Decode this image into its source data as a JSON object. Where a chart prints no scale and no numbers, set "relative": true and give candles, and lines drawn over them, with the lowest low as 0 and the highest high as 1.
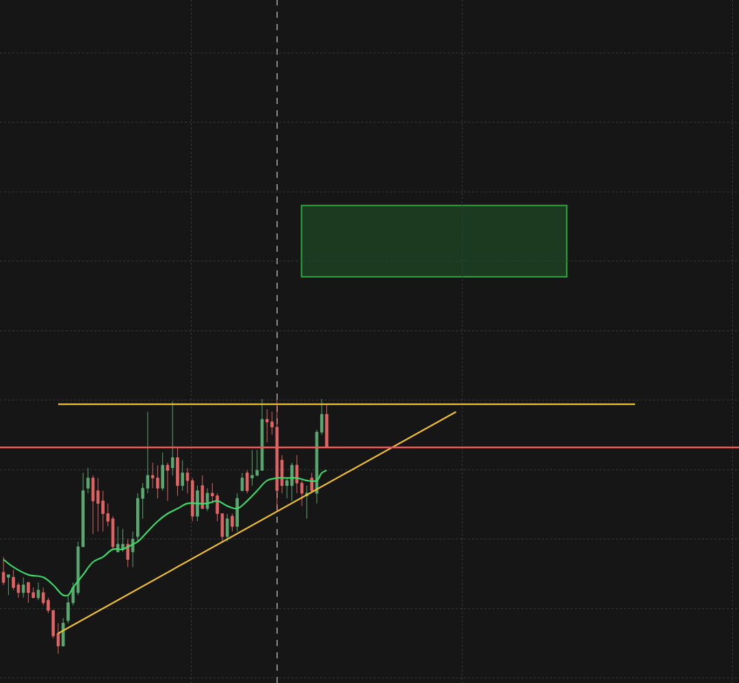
{
  "chart_data": {
    "type": "candlestick",
    "relative": true,
    "categories": [
      null,
      null,
      null,
      null,
      null,
      null,
      null,
      null,
      null,
      null,
      null,
      null,
      null,
      null,
      null,
      null,
      null,
      null,
      null,
      null,
      null,
      null,
      null,
      null,
      null,
      null,
      null,
      null,
      null,
      null,
      null,
      null,
      null,
      null,
      null,
      null,
      null,
      null,
      null,
      null,
      null,
      null,
      null,
      null,
      null,
      null,
      null,
      null,
      null,
      null,
      null,
      null,
      null,
      null,
      null,
      null,
      null,
      null,
      null,
      null,
      null,
      null,
      null,
      null,
      null,
      null,
      null,
      null,
      null,
      null,
      null,
      null,
      null,
      null,
      null,
      null,
      null,
      null,
      null,
      null,
      null,
      null,
      null,
      null,
      null,
      null,
      null,
      null,
      null,
      null,
      null,
      null,
      null,
      null,
      null,
      null,
      null,
      null,
      null,
      null,
      null,
      null,
      null,
      null,
      null,
      null,
      null,
      null,
      null,
      null,
      null,
      null,
      null,
      null,
      null,
      null,
      null,
      null,
      null,
      null,
      null,
      null,
      null,
      null,
      null,
      null,
      null,
      null
    ],
    "ohlc": [
      [
        0.32,
        0.38,
        0.27,
        0.28
      ],
      [
        0.3,
        0.31,
        0.23,
        0.31
      ],
      [
        0.3,
        0.33,
        0.25,
        0.26
      ],
      [
        0.27,
        0.28,
        0.22,
        0.24
      ],
      [
        0.24,
        0.3,
        0.22,
        0.27
      ],
      [
        0.28,
        0.28,
        0.2,
        0.24
      ],
      [
        0.24,
        0.26,
        0.22,
        0.22
      ],
      [
        0.22,
        0.28,
        0.21,
        0.25
      ],
      [
        0.24,
        0.26,
        0.19,
        0.2
      ],
      [
        0.21,
        0.22,
        0.16,
        0.17
      ],
      [
        0.17,
        0.17,
        0.06,
        0.07
      ],
      [
        0.08,
        0.12,
        0,
        0.03
      ],
      [
        0.03,
        0.14,
        0.03,
        0.12
      ],
      [
        0.13,
        0.23,
        0.12,
        0.2
      ],
      [
        0.2,
        0.28,
        0.19,
        0.26
      ],
      [
        0.24,
        0.44,
        0.23,
        0.42
      ],
      [
        0.42,
        0.71,
        0.42,
        0.64
      ],
      [
        0.65,
        0.73,
        0.63,
        0.69
      ],
      [
        0.69,
        0.7,
        0.47,
        0.6
      ],
      [
        0.64,
        0.69,
        0.48,
        0.59
      ],
      [
        0.6,
        0.64,
        0.48,
        0.55
      ],
      [
        0.55,
        0.59,
        0.5,
        0.52
      ],
      [
        0.53,
        0.54,
        0.41,
        0.42
      ],
      [
        0.4,
        0.5,
        0.4,
        0.43
      ],
      [
        0.41,
        0.49,
        0.4,
        0.43
      ],
      [
        0.43,
        0.45,
        0.34,
        0.37
      ],
      [
        0.4,
        0.48,
        0.34,
        0.45
      ],
      [
        0.46,
        0.63,
        0.44,
        0.61
      ],
      [
        0.61,
        0.67,
        0.53,
        0.65
      ],
      [
        0.65,
        0.95,
        0.63,
        0.7
      ],
      [
        0.7,
        0.75,
        0.65,
        0.69
      ],
      [
        0.69,
        0.74,
        0.61,
        0.65
      ],
      [
        0.65,
        0.79,
        0.64,
        0.74
      ],
      [
        0.74,
        0.75,
        0.6,
        0.72
      ],
      [
        0.73,
        0.99,
        0.7,
        0.77
      ],
      [
        0.77,
        0.81,
        0.62,
        0.66
      ],
      [
        0.66,
        0.76,
        0.64,
        0.71
      ],
      [
        0.71,
        0.73,
        0.63,
        0.68
      ],
      [
        0.68,
        0.69,
        0.52,
        0.54
      ],
      [
        0.54,
        0.66,
        0.52,
        0.64
      ],
      [
        0.66,
        0.7,
        0.57,
        0.57
      ],
      [
        0.57,
        0.65,
        0.56,
        0.63
      ],
      [
        0.63,
        0.67,
        0.59,
        0.62
      ],
      [
        0.62,
        0.63,
        0.52,
        0.55
      ],
      [
        0.55,
        0.55,
        0.44,
        0.46
      ],
      [
        0.46,
        0.55,
        0.44,
        0.53
      ],
      [
        0.54,
        0.55,
        0.48,
        0.5
      ],
      [
        0.5,
        0.63,
        0.48,
        0.61
      ],
      [
        0.64,
        0.71,
        0.64,
        0.69
      ],
      [
        0.71,
        0.72,
        0.63,
        0.64
      ],
      [
        0.69,
        0.8,
        0.66,
        0.7
      ],
      [
        0.7,
        0.8,
        0.7,
        0.72
      ],
      [
        0.72,
        1.0,
        0.72,
        0.92
      ],
      [
        0.92,
        0.96,
        0.83,
        0.91
      ],
      [
        0.91,
        0.95,
        0.86,
        0.89
      ],
      [
        0.89,
        1.0,
        0.56,
        0.64
      ],
      [
        0.76,
        0.78,
        0.63,
        0.66
      ],
      [
        0.66,
        0.69,
        0.61,
        0.68
      ],
      [
        0.66,
        0.75,
        0.6,
        0.74
      ],
      [
        0.74,
        0.78,
        0.63,
        0.67
      ],
      [
        0.67,
        0.68,
        0.58,
        0.63
      ],
      [
        0.62,
        0.66,
        0.53,
        0.63
      ],
      [
        0.69,
        0.71,
        0.63,
        0.64
      ],
      [
        0.63,
        0.88,
        0.59,
        0.87
      ],
      [
        0.87,
        1.0,
        0.86,
        0.94
      ],
      [
        0.94,
        0.98,
        0.81,
        0.81
      ],
      null,
      null,
      null,
      null,
      null,
      null,
      null,
      null,
      null,
      null,
      null,
      null,
      null,
      null,
      null,
      null,
      null,
      null,
      null,
      null,
      null,
      null,
      null,
      null,
      null,
      null,
      null,
      null,
      null,
      null,
      null,
      null,
      null,
      null,
      null,
      null,
      null,
      null,
      null,
      null,
      null,
      null,
      null,
      null,
      null,
      null,
      null,
      null,
      null,
      null,
      null,
      null,
      null,
      null,
      null,
      null,
      null,
      null,
      null,
      null,
      null,
      null
    ],
    "colors": [
      "#e06464",
      "#5aa870",
      "#e06464",
      "#e06464",
      "#5aa870",
      "#e06464",
      "#e06464",
      "#5aa870",
      "#e06464",
      "#e06464",
      "#e06464",
      "#e06464",
      "#5aa870",
      "#5aa870",
      "#5aa870",
      "#5aa870",
      "#5aa870",
      "#5aa870",
      "#e06464",
      "#e06464",
      "#e06464",
      "#e06464",
      "#e06464",
      "#5aa870",
      "#5aa870",
      "#e06464",
      "#5aa870",
      "#5aa870",
      "#5aa870",
      "#5aa870",
      "#e06464",
      "#e06464",
      "#5aa870",
      "#e06464",
      "#5aa870",
      "#e06464",
      "#5aa870",
      "#e06464",
      "#e06464",
      "#5aa870",
      "#e06464",
      "#5aa870",
      "#e06464",
      "#e06464",
      "#e06464",
      "#5aa870",
      "#e06464",
      "#5aa870",
      "#5aa870",
      "#e06464",
      "#5aa870",
      "#5aa870",
      "#5aa870",
      "#e06464",
      "#e06464",
      "#e06464",
      "#e06464",
      "#5aa870",
      "#5aa870",
      "#e06464",
      "#e06464",
      "#5aa870",
      "#e06464",
      "#5aa870",
      "#5aa870",
      "#e06464",
      null,
      null,
      null,
      null,
      null,
      null,
      null,
      null,
      null,
      null,
      null,
      null,
      null,
      null,
      null,
      null,
      null,
      null,
      null,
      null,
      null,
      null,
      null,
      null,
      null,
      null,
      null,
      null,
      null,
      null,
      null,
      null,
      null,
      null,
      null,
      null,
      null,
      null,
      null,
      null,
      null,
      null,
      null,
      null,
      null,
      null,
      null,
      null,
      null,
      null,
      null,
      null,
      null,
      null,
      null,
      null,
      null,
      null,
      null,
      null,
      null,
      null
    ],
    "series": [
      {
        "type": "line",
        "color": "#3ddc6a",
        "values": [
          0.37,
          null,
          0.34,
          null,
          null,
          0.31,
          null,
          null,
          0.3,
          null,
          0.27,
          null,
          0.23,
          0.23,
          0.26,
          null,
          0.31,
          null,
          0.36,
          null,
          0.38,
          null,
          0.41,
          null,
          0.41,
          0.42,
          null,
          0.44,
          null,
          0.48,
          null,
          0.52,
          null,
          0.55,
          null,
          0.57,
          null,
          0.59,
          null,
          0.59,
          null,
          0.59,
          null,
          0.6,
          null,
          0.58,
          null,
          0.57,
          null,
          0.6,
          null,
          0.64,
          null,
          0.68,
          null,
          0.69,
          null,
          0.69,
          null,
          0.69,
          null,
          0.68,
          null,
          0.68,
          0.71,
          0.72,
          null,
          null,
          null,
          null,
          null,
          null,
          null,
          null,
          null,
          null,
          null,
          null,
          null,
          null,
          null,
          null,
          null,
          null,
          null,
          null,
          null,
          null,
          null,
          null,
          null,
          null,
          null,
          null,
          null,
          null,
          null,
          null,
          null,
          null,
          null,
          null,
          null,
          null,
          null,
          null,
          null,
          null,
          null,
          null,
          null,
          null,
          null,
          null,
          null,
          null,
          null,
          null,
          null,
          null,
          null,
          null,
          null,
          null,
          null,
          null,
          null,
          null
        ]
      },
      {
        "type": "line",
        "color": "#f2c12e",
        "values": [
          null,
          null,
          null,
          null,
          null,
          null,
          null,
          null,
          null,
          null,
          null,
          0.08,
          null,
          null,
          null,
          null,
          null,
          null,
          null,
          null,
          null,
          null,
          null,
          null,
          null,
          null,
          null,
          null,
          null,
          null,
          null,
          null,
          null,
          null,
          null,
          null,
          null,
          null,
          null,
          null,
          null,
          null,
          null,
          null,
          null,
          null,
          null,
          null,
          null,
          null,
          null,
          null,
          null,
          null,
          null,
          null,
          null,
          null,
          null,
          null,
          null,
          null,
          null,
          null,
          null,
          null,
          null,
          null,
          null,
          null,
          null,
          null,
          null,
          null,
          null,
          null,
          null,
          null,
          null,
          null,
          null,
          null,
          null,
          null,
          null,
          null,
          null,
          null,
          null,
          null,
          null,
          0.95,
          null,
          null,
          null,
          null,
          null,
          null,
          null,
          null,
          null,
          null,
          null,
          null,
          null,
          null,
          null,
          null,
          null,
          null,
          null,
          null,
          null,
          null,
          null,
          null,
          null,
          null,
          null,
          null,
          null,
          null,
          null,
          null,
          null,
          null,
          null,
          null
        ]
      },
      {
        "type": "line",
        "color": "#f2c12e",
        "values": [
          null,
          null,
          null,
          null,
          null,
          null,
          null,
          null,
          null,
          null,
          null,
          0.98,
          null,
          null,
          null,
          null,
          null,
          null,
          null,
          null,
          null,
          null,
          null,
          null,
          null,
          null,
          null,
          null,
          null,
          null,
          null,
          null,
          null,
          null,
          null,
          null,
          null,
          null,
          null,
          null,
          null,
          null,
          null,
          null,
          null,
          null,
          null,
          null,
          null,
          null,
          null,
          null,
          null,
          null,
          null,
          null,
          null,
          null,
          null,
          null,
          null,
          null,
          null,
          null,
          null,
          null,
          null,
          null,
          null,
          null,
          null,
          null,
          null,
          null,
          null,
          null,
          null,
          null,
          null,
          null,
          null,
          null,
          null,
          null,
          null,
          null,
          null,
          null,
          null,
          null,
          null,
          null,
          null,
          null,
          null,
          null,
          null,
          null,
          null,
          null,
          null,
          null,
          null,
          null,
          null,
          null,
          null,
          null,
          null,
          null,
          null,
          null,
          null,
          null,
          null,
          null,
          null,
          null,
          null,
          null,
          null,
          null,
          null,
          null,
          null,
          null,
          null,
          0.98
        ]
      }
    ],
    "ref_lines": [
      {
        "axis": "y",
        "value": 0.81,
        "color": "#e25c5c"
      }
    ],
    "bands": [
      {
        "axis": "y",
        "from": 1.48,
        "to": 1.76,
        "color": "#2fa83f"
      }
    ],
    "grid": true,
    "tick_labels": false
  }
}
